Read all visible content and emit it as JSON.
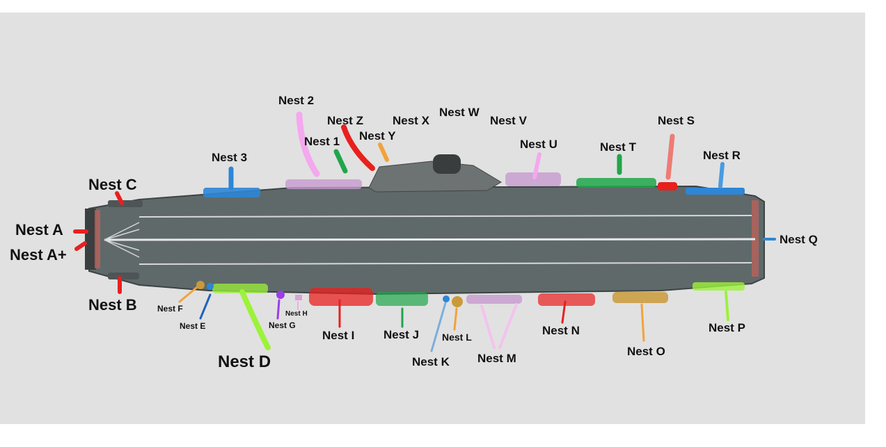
{
  "labels": {
    "nest_a": "Nest A",
    "nest_a_plus": "Nest A+",
    "nest_b": "Nest B",
    "nest_c": "Nest C",
    "nest_d": "Nest D",
    "nest_e": "Nest E",
    "nest_f": "Nest F",
    "nest_g": "Nest G",
    "nest_h": "Nest H",
    "nest_i": "Nest I",
    "nest_j": "Nest J",
    "nest_k": "Nest K",
    "nest_l": "Nest L",
    "nest_m": "Nest M",
    "nest_n": "Nest N",
    "nest_o": "Nest O",
    "nest_p": "Nest P",
    "nest_q": "Nest Q",
    "nest_r": "Nest R",
    "nest_s": "Nest S",
    "nest_t": "Nest T",
    "nest_u": "Nest U",
    "nest_v": "Nest V",
    "nest_w": "Nest W",
    "nest_x": "Nest X",
    "nest_y": "Nest Y",
    "nest_z": "Nest Z",
    "nest_1": "Nest 1",
    "nest_2": "Nest 2",
    "nest_3": "Nest 3"
  },
  "colors": {
    "background": "#e1e1e1",
    "deck": "#5f696a",
    "red": "#e8201e",
    "green": "#1fa64a",
    "blue": "#2d86d6",
    "pink": "#f4a8ee",
    "orange": "#f3a23a",
    "lime": "#9cf23a",
    "purple": "#9a3ee6",
    "tan": "#c99a3a",
    "salmon": "#ee7b76"
  }
}
